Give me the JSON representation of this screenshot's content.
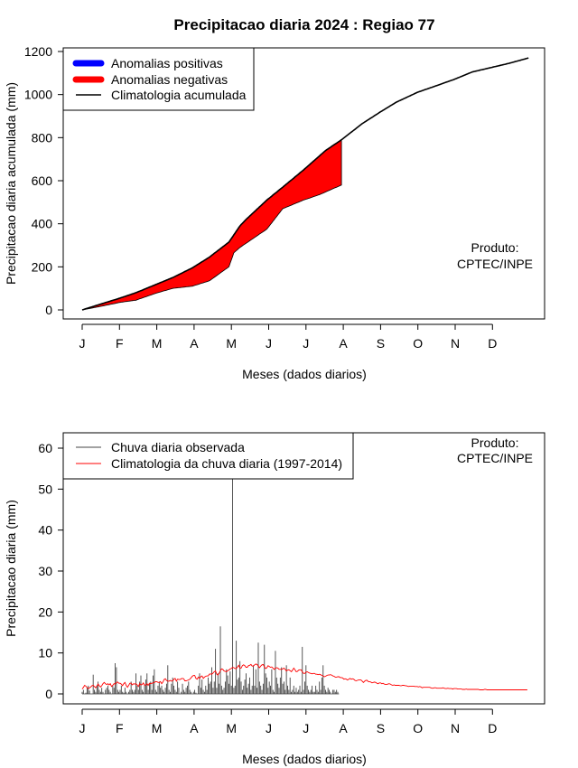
{
  "page_title": "Precipitacao diaria 2024 : Regiao 77",
  "chart_data": [
    {
      "type": "area",
      "title": "Precipitacao diaria 2024 : Regiao 77",
      "xlabel": "Meses (dados diarios)",
      "ylabel": "Precipitacao diaria acumulada (mm)",
      "x_ticks": [
        "J",
        "F",
        "M",
        "A",
        "M",
        "J",
        "J",
        "A",
        "S",
        "O",
        "N",
        "D"
      ],
      "ylim": [
        0,
        1200
      ],
      "y_ticks": [
        0,
        200,
        400,
        600,
        800,
        1000,
        1200
      ],
      "legend_position": "top-left",
      "legend": [
        {
          "label": "Anomalias positivas",
          "color": "#0000ff"
        },
        {
          "label": "Anomalias negativas",
          "color": "#ff0000"
        },
        {
          "label": "Climatologia acumulada",
          "color": "#000000"
        }
      ],
      "annotation": [
        "Produto:",
        "CPTEC/INPE"
      ],
      "climatology_day": [
        1,
        15,
        32,
        45,
        60,
        75,
        91,
        105,
        121,
        130,
        135,
        152,
        165,
        182,
        200,
        213,
        230,
        245,
        258,
        275,
        290,
        305,
        320,
        335,
        350,
        366
      ],
      "climatology_cum": [
        0,
        25,
        55,
        80,
        115,
        150,
        195,
        245,
        315,
        390,
        420,
        510,
        570,
        650,
        740,
        790,
        865,
        920,
        965,
        1010,
        1040,
        1070,
        1105,
        1125,
        1145,
        1170
      ],
      "observed_day": [
        1,
        15,
        32,
        45,
        60,
        75,
        91,
        105,
        121,
        125,
        130,
        152,
        165,
        182,
        195,
        205,
        213
      ],
      "observed_cum": [
        0,
        15,
        35,
        45,
        75,
        100,
        110,
        135,
        200,
        265,
        290,
        375,
        470,
        510,
        535,
        560,
        580
      ],
      "last_observed_day": 213
    },
    {
      "type": "bar",
      "xlabel": "Meses (dados diarios)",
      "ylabel": "Precipitacao diaria (mm)",
      "x_ticks": [
        "J",
        "F",
        "M",
        "A",
        "M",
        "J",
        "J",
        "A",
        "S",
        "O",
        "N",
        "D"
      ],
      "ylim": [
        0,
        60
      ],
      "y_ticks": [
        0,
        10,
        20,
        30,
        40,
        50,
        60
      ],
      "legend_position": "top-left",
      "legend": [
        {
          "label": "Chuva diaria observada",
          "color": "#444444"
        },
        {
          "label": "Climatologia da chuva diaria (1997-2014)",
          "color": "#ff0000"
        }
      ],
      "annotation": [
        "Produto:",
        "CPTEC/INPE"
      ],
      "observed_daily_mm": [
        0.5,
        1,
        0,
        0.3,
        1.5,
        2,
        0.8,
        0,
        0,
        4.7,
        1,
        0.5,
        2,
        3,
        1,
        0.5,
        1.5,
        0.5,
        0,
        1,
        1.5,
        2,
        1,
        0.5,
        0,
        2,
        1.5,
        7.5,
        6.5,
        1,
        0.5,
        1,
        2,
        0.5,
        0.3,
        1.5,
        0.5,
        0,
        0.5,
        1,
        3,
        1,
        0.5,
        1,
        5,
        2,
        1,
        3,
        4.5,
        1,
        0.5,
        2,
        3.5,
        5,
        1,
        2.5,
        3,
        1,
        4.5,
        6,
        1,
        0.5,
        2,
        3,
        1.5,
        2,
        1,
        0.5,
        1.5,
        2.5,
        7,
        1,
        0.5,
        2.5,
        4,
        2,
        1,
        0.5,
        3,
        1.5,
        0,
        0.5,
        2.5,
        1,
        0.5,
        1.5,
        2,
        3,
        1,
        0.5,
        0,
        0.5,
        1,
        0.3,
        0,
        2,
        5,
        1.5,
        3.5,
        1,
        0.5,
        2,
        1,
        4,
        2.5,
        3,
        6.5,
        1.5,
        3,
        11,
        1.5,
        5,
        2.5,
        16.5,
        2,
        1,
        1.5,
        3,
        6,
        4.5,
        2.5,
        5.5,
        2,
        53,
        1.5,
        2,
        13,
        3.5,
        4,
        8,
        3,
        1,
        2,
        3.5,
        5,
        1.5,
        2.5,
        4,
        1,
        2,
        7,
        2,
        6,
        1.5,
        12.5,
        3,
        2,
        1,
        2.5,
        12,
        5,
        4,
        1.5,
        3,
        2,
        6,
        1,
        0.5,
        10.5,
        4,
        2.5,
        1.5,
        4,
        6.5,
        2.5,
        3,
        1,
        7,
        2,
        1,
        4,
        0.5,
        1,
        2,
        0.5,
        1.5,
        0.5,
        1,
        2,
        0.5,
        11.5,
        1,
        3,
        7,
        2,
        1,
        0.5,
        1,
        2,
        0.5,
        0.5,
        2,
        1,
        0.5,
        3,
        1,
        4,
        7,
        2,
        1,
        0.5,
        1.5,
        1,
        0.5,
        0,
        1,
        1,
        0.5,
        1,
        0.5,
        0
      ],
      "climatology_daily_mm": [
        1.2,
        1.6,
        2.1,
        1.9,
        1.5,
        1.3,
        1.5,
        1.7,
        2.0,
        2.1,
        1.8,
        1.5,
        1.9,
        2.4,
        2.0,
        1.7,
        2.0,
        2.5,
        2.8,
        2.5,
        2.3,
        2.5,
        2.2,
        2.5,
        1.8,
        2.1,
        2.5,
        2.4,
        2.8,
        2.9,
        2.6,
        2.6,
        2.4,
        2.0,
        2.5,
        2.8,
        2.1,
        1.6,
        2.1,
        2.6,
        2.6,
        2.2,
        2.5,
        2.4,
        2.5,
        2.2,
        1.8,
        2.5,
        2.2,
        2.3,
        2.7,
        2.1,
        2.2,
        2.5,
        2.1,
        2.6,
        2.5,
        2.6,
        2.7,
        2.8,
        3.0,
        3.0,
        2.8,
        2.8,
        3.0,
        2.5,
        2.9,
        3.5,
        3.7,
        3.3,
        3.1,
        3.1,
        3.3,
        3.1,
        3.2,
        3.6,
        3.8,
        3.1,
        3.6,
        3.5,
        3.5,
        3.7,
        3.8,
        3.7,
        3.2,
        3.2,
        3.3,
        3.4,
        3.6,
        3.9,
        4.3,
        4.5,
        4.5,
        3.8,
        3.6,
        4.1,
        3.8,
        4.2,
        4.4,
        3.8,
        4.1,
        4.3,
        4.4,
        4.4,
        4.8,
        4.9,
        4.8,
        5.1,
        5.4,
        5.6,
        4.8,
        4.6,
        5.1,
        5.7,
        6.1,
        6.0,
        5.6,
        5.5,
        5.4,
        5.7,
        5.8,
        6.1,
        6.2,
        6.5,
        6.4,
        6.2,
        6.2,
        6.6,
        7.0,
        6.3,
        6.3,
        6.9,
        7.1,
        6.9,
        6.5,
        6.5,
        6.9,
        7.0,
        7.2,
        6.8,
        6.8,
        7.1,
        7.3,
        7.2,
        6.8,
        6.4,
        6.8,
        7.1,
        7.2,
        6.6,
        6.2,
        6.4,
        6.9,
        6.7,
        6.5,
        6.6,
        6.3,
        6.0,
        6.3,
        6.4,
        6.3,
        6.0,
        6.0,
        6.0,
        6.1,
        6.3,
        6.0,
        5.6,
        5.8,
        5.9,
        5.7,
        5.4,
        5.8,
        6.3,
        5.9,
        5.4,
        5.5,
        5.8,
        5.9,
        5.9,
        5.4,
        5.0,
        5.0,
        5.3,
        5.4,
        5.2,
        5.1,
        5.0,
        4.9,
        5.0,
        5.0,
        4.8,
        4.8,
        4.7,
        4.8,
        4.7,
        4.5,
        4.4,
        4.2,
        4.3,
        4.5,
        4.6,
        4.6,
        4.7,
        4.6,
        4.4,
        4.3,
        4.1,
        4.1,
        4.2,
        4.2,
        4.0,
        4.0,
        3.9,
        3.6,
        3.7,
        3.6,
        3.4,
        3.6,
        3.8,
        3.6,
        3.7,
        3.6,
        3.3,
        3.2,
        3.3,
        3.4,
        3.4,
        3.4,
        3.1,
        2.8,
        3.1,
        3.3,
        3.3,
        3.0,
        3.0,
        2.9,
        2.7,
        2.8,
        2.9,
        2.8,
        2.6,
        2.5,
        2.7,
        2.7,
        2.5,
        2.6,
        2.4,
        2.3,
        2.3,
        2.4,
        2.5,
        2.4,
        2.2,
        2.1,
        2.2,
        2.1,
        2.1,
        2.1,
        2.1,
        2.0,
        2.0,
        2.1,
        2.1,
        2.0,
        2.0,
        1.9,
        1.8,
        1.9,
        1.9,
        1.9,
        1.9,
        1.8,
        1.8,
        1.8,
        1.7,
        1.8,
        1.7,
        1.5,
        1.6,
        1.6,
        1.6,
        1.6,
        1.6,
        1.6,
        1.5,
        1.4,
        1.4,
        1.5,
        1.5,
        1.4,
        1.4,
        1.4,
        1.4,
        1.4,
        1.5,
        1.4,
        1.3,
        1.3,
        1.4,
        1.3,
        1.3,
        1.3,
        1.2,
        1.3,
        1.3,
        1.3,
        1.2,
        1.2,
        1.2,
        1.2,
        1.1,
        1.1,
        1.1,
        1.2,
        1.1,
        1.1,
        1.1,
        1.1,
        1.1,
        1.1,
        1.1,
        1.1,
        1.1,
        1.1,
        1.0,
        1.0,
        1.0,
        1.0,
        1.1,
        1.1,
        1.0,
        1.0,
        1.0,
        1.0,
        1.0,
        1.0,
        1.0,
        1.0,
        1.0,
        1.0,
        1.0,
        1.0,
        1.0,
        1.0,
        1.0,
        1.0,
        1.0,
        1.0,
        1.0,
        1.0,
        1.0,
        1.0,
        1.0,
        1.0,
        1.0,
        1.0,
        1.0,
        1.0,
        1.0,
        1.0,
        1.0,
        1.0,
        1.0,
        1.0
      ]
    }
  ]
}
